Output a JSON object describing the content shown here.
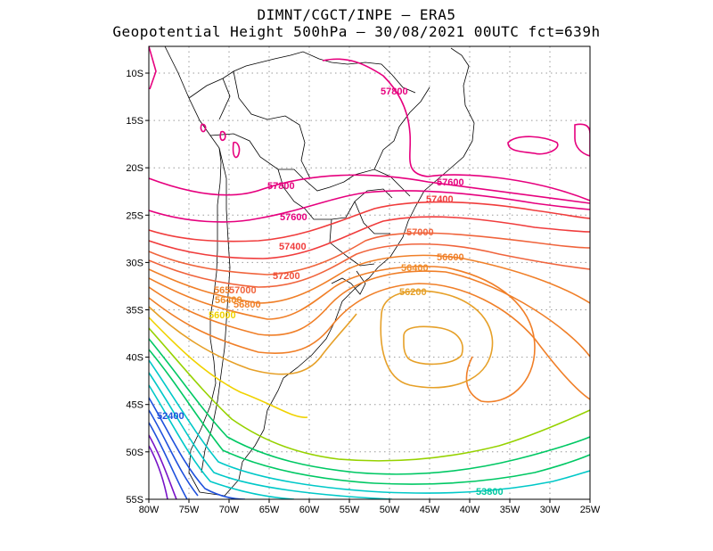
{
  "header": {
    "line1": "DIMNT/CGCT/INPE –  ERA5",
    "line2": "Geopotential Height 500hPa –  30/08/2021 00UTC fct=639h"
  },
  "axes": {
    "lat_labels": [
      "10S",
      "15S",
      "20S",
      "25S",
      "30S",
      "35S",
      "40S",
      "45S",
      "50S",
      "55S"
    ],
    "lon_labels": [
      "80W",
      "75W",
      "70W",
      "65W",
      "60W",
      "55W",
      "50W",
      "45W",
      "40W",
      "35W",
      "30W",
      "25W"
    ]
  },
  "contour_labels": {
    "c57800a": "57800",
    "c57800b": "57800",
    "c57600a": "57600",
    "c57600b": "57600",
    "c57400a": "57400",
    "c57400b": "57400",
    "c57200": "57200",
    "c57000a": "57000",
    "c57000b": "57000",
    "c56800a": "56800",
    "c56800b": "56800",
    "c56600": "56600",
    "c56400a": "56400",
    "c56400b": "56400",
    "c56200": "56200",
    "c5650": "565",
    "c56000": "56000",
    "c52400": "52400",
    "c53800": "53800"
  },
  "colors": {
    "c578": "#e6007e",
    "c574": "#f03c3c",
    "c570": "#f0643c",
    "c566": "#f07f28",
    "c562": "#e6a028",
    "c560": "#f0d200",
    "c550": "#96d200",
    "c540": "#00c864",
    "c530": "#00c8c8",
    "c524": "#1e50dc",
    "c518": "#7814c8"
  }
}
